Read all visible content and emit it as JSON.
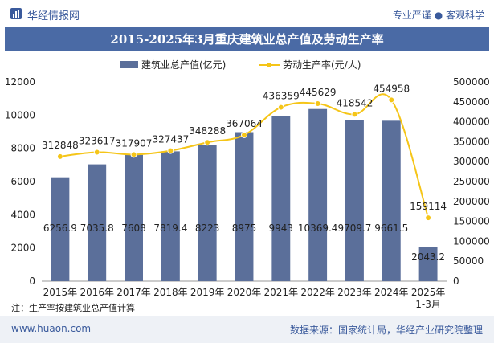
{
  "header": {
    "brand": "华经情报网",
    "slogan": "专业严谨 ● 客观科学"
  },
  "footer": {
    "site": "www.huaon.com",
    "source": "数据来源：国家统计局，华经产业研究院整理"
  },
  "note": "注：生产率按建筑业总产值计算",
  "colors": {
    "bar": "#5b6f9a",
    "line": "#f5c518",
    "title_bg": "#4a6aa5",
    "brand": "#3a5a9c"
  },
  "chart_data": {
    "type": "bar",
    "title": "2015-2025年3月重庆建筑业总产值及劳动生产率",
    "categories": [
      "2015年",
      "2016年",
      "2017年",
      "2018年",
      "2019年",
      "2020年",
      "2021年",
      "2022年",
      "2023年",
      "2024年",
      "2025年\n1-3月"
    ],
    "series": [
      {
        "name": "建筑业总产值(亿元)",
        "type": "bar",
        "axis": "left",
        "values": [
          6256.9,
          7035.8,
          7608,
          7819.4,
          8223,
          8975,
          9943,
          10369.4,
          9709.7,
          9661.5,
          2043.2
        ],
        "labels": [
          "6256.9",
          "7035.8",
          "7608",
          "7819.4",
          "8223",
          "8975",
          "9943",
          "10369.4",
          "9709.7",
          "9661.5",
          "2043.2"
        ]
      },
      {
        "name": "劳动生产率(元/人)",
        "type": "line",
        "axis": "right",
        "values": [
          312848,
          323617,
          317907,
          327437,
          348288,
          367064,
          436359,
          445629,
          418542,
          454958,
          159114
        ],
        "labels": [
          "312848",
          "323617",
          "317907",
          "327437",
          "348288",
          "367064",
          "436359",
          "445629",
          "418542",
          "454958",
          "159114"
        ]
      }
    ],
    "y_left": {
      "min": 0,
      "max": 12000,
      "ticks": [
        "0",
        "2000",
        "4000",
        "6000",
        "8000",
        "10000",
        "12000"
      ]
    },
    "y_right": {
      "min": 0,
      "max": 500000,
      "ticks": [
        "0",
        "50000",
        "100000",
        "150000",
        "200000",
        "250000",
        "300000",
        "350000",
        "400000",
        "450000",
        "500000"
      ]
    },
    "legend_position": "top-center",
    "grid": false
  }
}
